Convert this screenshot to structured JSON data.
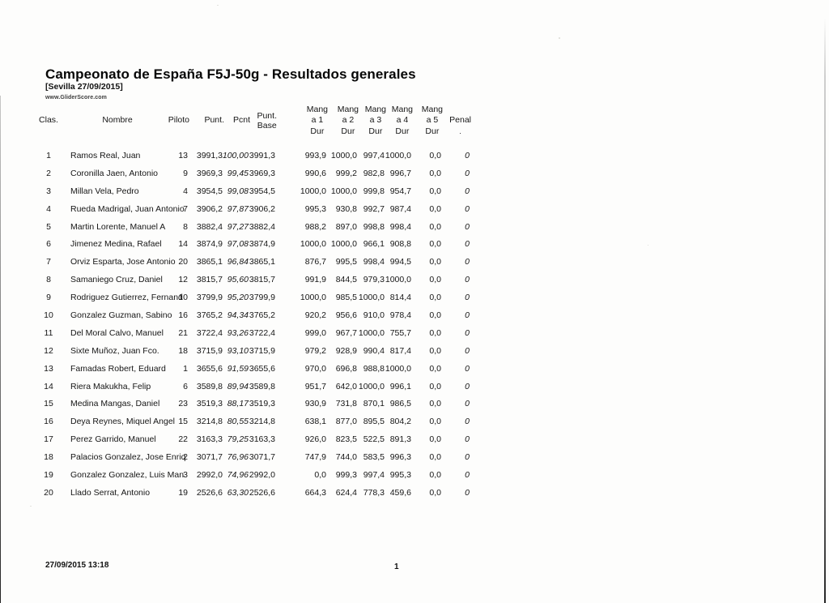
{
  "document": {
    "title": "Campeonato de España F5J-50g - Resultados generales",
    "subtitle": "[Sevilla 27/09/2015]",
    "website": "www.GliderScore.com",
    "footer": {
      "datetime": "27/09/2015 13:18",
      "page_number": "1"
    }
  },
  "table": {
    "headers": {
      "clas": "Clas.",
      "nombre": "Nombre",
      "piloto": "Piloto",
      "punt": "Punt.",
      "pcnt": "Pcnt",
      "punt_base_line1": "Punt.",
      "punt_base_line2": "Base",
      "mang_prefix": "Mang",
      "mang_rounds": [
        "a 1",
        "a 2",
        "a 3",
        "a 4",
        "a 5"
      ],
      "mang_suffix": "Dur",
      "penal": "Penal",
      "penal_dot": "."
    },
    "rows": [
      {
        "clas": "1",
        "nombre": "Ramos Real, Juan",
        "piloto": "13",
        "punt": "3991,3",
        "pcnt": "100,00",
        "punt_base": "3991,3",
        "mang": [
          "993,9",
          "1000,0",
          "997,4",
          "1000,0",
          "0,0"
        ],
        "penal": "0"
      },
      {
        "clas": "2",
        "nombre": "Coronilla Jaen, Antonio",
        "piloto": "9",
        "punt": "3969,3",
        "pcnt": "99,45",
        "punt_base": "3969,3",
        "mang": [
          "990,6",
          "999,2",
          "982,8",
          "996,7",
          "0,0"
        ],
        "penal": "0"
      },
      {
        "clas": "3",
        "nombre": "Millan Vela, Pedro",
        "piloto": "4",
        "punt": "3954,5",
        "pcnt": "99,08",
        "punt_base": "3954,5",
        "mang": [
          "1000,0",
          "1000,0",
          "999,8",
          "954,7",
          "0,0"
        ],
        "penal": "0"
      },
      {
        "clas": "4",
        "nombre": "Rueda Madrigal, Juan Antonio",
        "piloto": "7",
        "punt": "3906,2",
        "pcnt": "97,87",
        "punt_base": "3906,2",
        "mang": [
          "995,3",
          "930,8",
          "992,7",
          "987,4",
          "0,0"
        ],
        "penal": "0"
      },
      {
        "clas": "5",
        "nombre": "Martin Lorente, Manuel A",
        "piloto": "8",
        "punt": "3882,4",
        "pcnt": "97,27",
        "punt_base": "3882,4",
        "mang": [
          "988,2",
          "897,0",
          "998,8",
          "998,4",
          "0,0"
        ],
        "penal": "0"
      },
      {
        "clas": "6",
        "nombre": "Jimenez Medina, Rafael",
        "piloto": "14",
        "punt": "3874,9",
        "pcnt": "97,08",
        "punt_base": "3874,9",
        "mang": [
          "1000,0",
          "1000,0",
          "966,1",
          "908,8",
          "0,0"
        ],
        "penal": "0"
      },
      {
        "clas": "7",
        "nombre": "Orviz Esparta, Jose Antonio",
        "piloto": "20",
        "punt": "3865,1",
        "pcnt": "96,84",
        "punt_base": "3865,1",
        "mang": [
          "876,7",
          "995,5",
          "998,4",
          "994,5",
          "0,0"
        ],
        "penal": "0"
      },
      {
        "clas": "8",
        "nombre": "Samaniego Cruz, Daniel",
        "piloto": "12",
        "punt": "3815,7",
        "pcnt": "95,60",
        "punt_base": "3815,7",
        "mang": [
          "991,9",
          "844,5",
          "979,3",
          "1000,0",
          "0,0"
        ],
        "penal": "0"
      },
      {
        "clas": "9",
        "nombre": "Rodriguez Gutierrez, Fernand",
        "piloto": "10",
        "punt": "3799,9",
        "pcnt": "95,20",
        "punt_base": "3799,9",
        "mang": [
          "1000,0",
          "985,5",
          "1000,0",
          "814,4",
          "0,0"
        ],
        "penal": "0"
      },
      {
        "clas": "10",
        "nombre": "Gonzalez Guzman, Sabino",
        "piloto": "16",
        "punt": "3765,2",
        "pcnt": "94,34",
        "punt_base": "3765,2",
        "mang": [
          "920,2",
          "956,6",
          "910,0",
          "978,4",
          "0,0"
        ],
        "penal": "0"
      },
      {
        "clas": "11",
        "nombre": "Del Moral Calvo, Manuel",
        "piloto": "21",
        "punt": "3722,4",
        "pcnt": "93,26",
        "punt_base": "3722,4",
        "mang": [
          "999,0",
          "967,7",
          "1000,0",
          "755,7",
          "0,0"
        ],
        "penal": "0"
      },
      {
        "clas": "12",
        "nombre": "Sixte Muñoz, Juan Fco.",
        "piloto": "18",
        "punt": "3715,9",
        "pcnt": "93,10",
        "punt_base": "3715,9",
        "mang": [
          "979,2",
          "928,9",
          "990,4",
          "817,4",
          "0,0"
        ],
        "penal": "0"
      },
      {
        "clas": "13",
        "nombre": "Famadas Robert, Eduard",
        "piloto": "1",
        "punt": "3655,6",
        "pcnt": "91,59",
        "punt_base": "3655,6",
        "mang": [
          "970,0",
          "696,8",
          "988,8",
          "1000,0",
          "0,0"
        ],
        "penal": "0"
      },
      {
        "clas": "14",
        "nombre": "Riera Makukha, Felip",
        "piloto": "6",
        "punt": "3589,8",
        "pcnt": "89,94",
        "punt_base": "3589,8",
        "mang": [
          "951,7",
          "642,0",
          "1000,0",
          "996,1",
          "0,0"
        ],
        "penal": "0"
      },
      {
        "clas": "15",
        "nombre": "Medina Mangas, Daniel",
        "piloto": "23",
        "punt": "3519,3",
        "pcnt": "88,17",
        "punt_base": "3519,3",
        "mang": [
          "930,9",
          "731,8",
          "870,1",
          "986,5",
          "0,0"
        ],
        "penal": "0"
      },
      {
        "clas": "16",
        "nombre": "Deya Reynes, Miquel Angel",
        "piloto": "15",
        "punt": "3214,8",
        "pcnt": "80,55",
        "punt_base": "3214,8",
        "mang": [
          "638,1",
          "877,0",
          "895,5",
          "804,2",
          "0,0"
        ],
        "penal": "0"
      },
      {
        "clas": "17",
        "nombre": "Perez Garrido, Manuel",
        "piloto": "22",
        "punt": "3163,3",
        "pcnt": "79,25",
        "punt_base": "3163,3",
        "mang": [
          "926,0",
          "823,5",
          "522,5",
          "891,3",
          "0,0"
        ],
        "penal": "0"
      },
      {
        "clas": "18",
        "nombre": "Palacios Gonzalez, Jose Enriq",
        "piloto": "2",
        "punt": "3071,7",
        "pcnt": "76,96",
        "punt_base": "3071,7",
        "mang": [
          "747,9",
          "744,0",
          "583,5",
          "996,3",
          "0,0"
        ],
        "penal": "0"
      },
      {
        "clas": "19",
        "nombre": "Gonzalez Gonzalez, Luis Man",
        "piloto": "3",
        "punt": "2992,0",
        "pcnt": "74,96",
        "punt_base": "2992,0",
        "mang": [
          "0,0",
          "999,3",
          "997,4",
          "995,3",
          "0,0"
        ],
        "penal": "0"
      },
      {
        "clas": "20",
        "nombre": "Llado Serrat, Antonio",
        "piloto": "19",
        "punt": "2526,6",
        "pcnt": "63,30",
        "punt_base": "2526,6",
        "mang": [
          "664,3",
          "624,4",
          "778,3",
          "459,6",
          "0,0"
        ],
        "penal": "0"
      }
    ]
  }
}
